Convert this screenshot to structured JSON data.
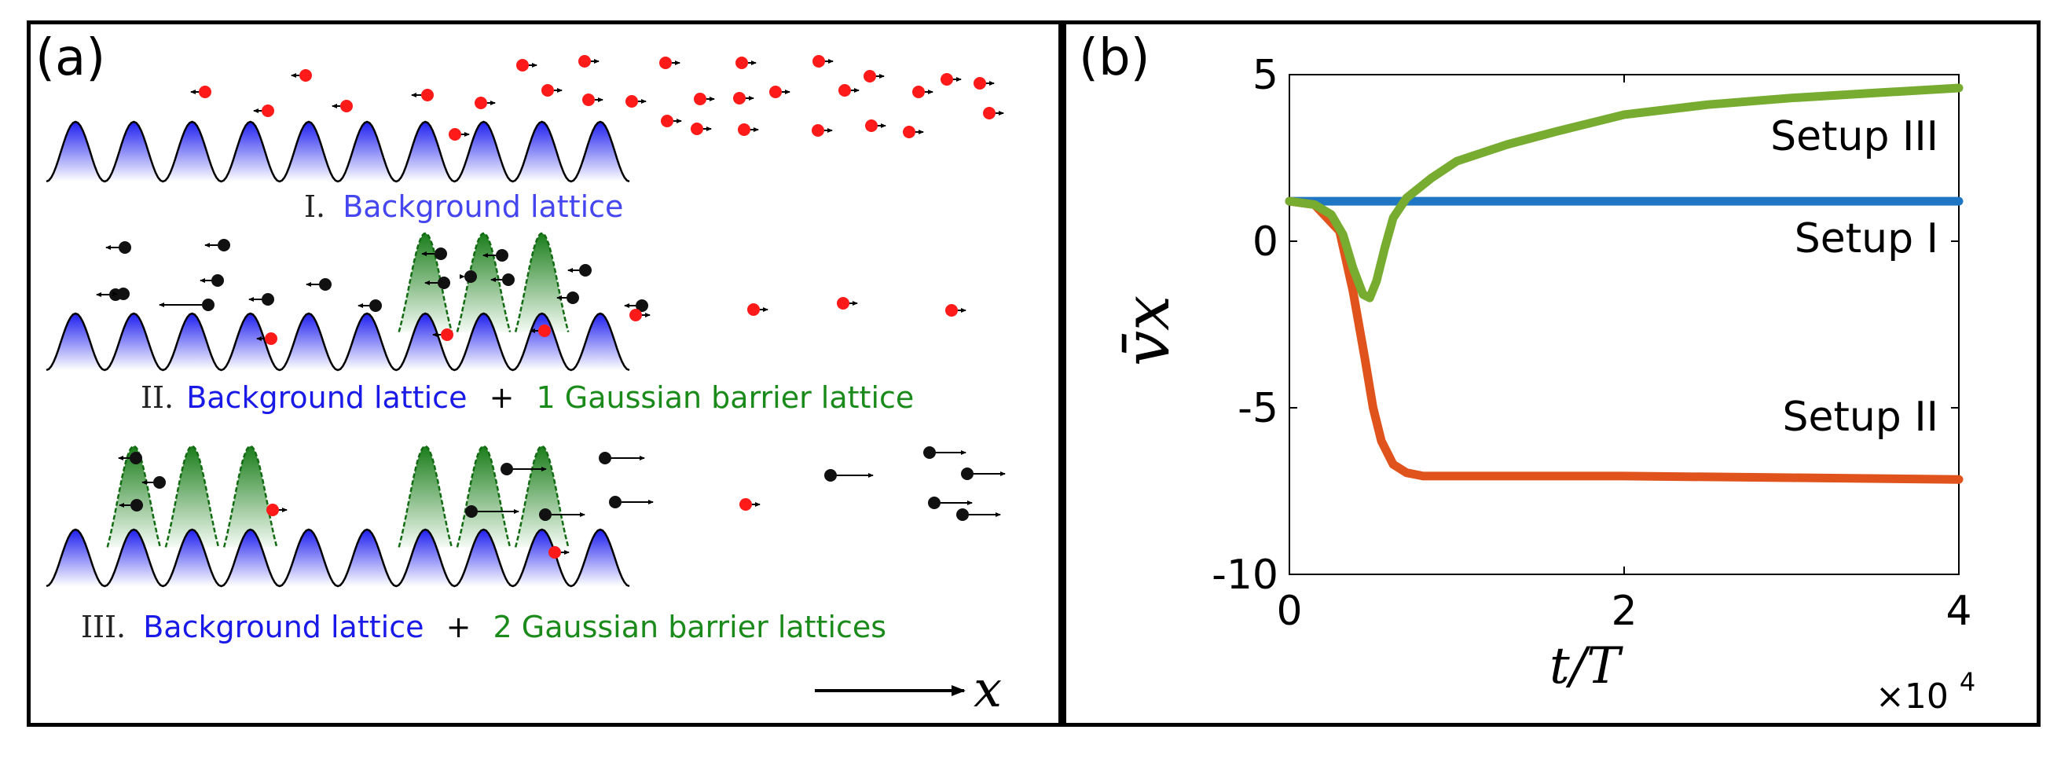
{
  "panel_a": {
    "letter": "(a)",
    "setups": [
      {
        "numeral": "I.",
        "part1": "Background lattice",
        "plus": "",
        "part2": ""
      },
      {
        "numeral": "II.",
        "part1": "Background lattice",
        "plus": "+",
        "part2": "1 Gaussian barrier lattice"
      },
      {
        "numeral": "III.",
        "part1": "Background lattice",
        "plus": "+",
        "part2": "2 Gaussian barrier lattices"
      }
    ],
    "axis_label": "x"
  },
  "panel_b": {
    "letter": "(b)"
  },
  "colors": {
    "background_lattice": "#3030e8",
    "barrier_lattice": "#1a8a1a",
    "setup_I": "#1f77c4",
    "setup_II": "#e0531c",
    "setup_III": "#77ac30"
  },
  "chart_data": {
    "type": "line",
    "xlabel": "t/T",
    "x_multiplier": "×10",
    "x_multiplier_exp": "4",
    "ylabel": "v̄x",
    "xlim": [
      0,
      4
    ],
    "ylim": [
      -10,
      5
    ],
    "xticks": [
      0,
      2,
      4
    ],
    "yticks": [
      5,
      0,
      -5,
      -10
    ],
    "grid": false,
    "series": [
      {
        "name": "Setup I",
        "color": "#1f77c4",
        "x": [
          0,
          0.5,
          1,
          1.5,
          2,
          2.5,
          3,
          3.5,
          4
        ],
        "y": [
          1.2,
          1.2,
          1.2,
          1.2,
          1.2,
          1.2,
          1.2,
          1.2,
          1.2
        ]
      },
      {
        "name": "Setup II",
        "color": "#e0531c",
        "x": [
          0,
          0.15,
          0.3,
          0.38,
          0.45,
          0.5,
          0.55,
          0.62,
          0.7,
          0.8,
          1.0,
          1.5,
          2,
          3,
          4
        ],
        "y": [
          1.2,
          1.1,
          0.3,
          -1.5,
          -3.5,
          -5.0,
          -6.0,
          -6.7,
          -6.95,
          -7.05,
          -7.05,
          -7.05,
          -7.05,
          -7.1,
          -7.15
        ]
      },
      {
        "name": "Setup III",
        "color": "#77ac30",
        "x": [
          0,
          0.15,
          0.25,
          0.32,
          0.38,
          0.44,
          0.48,
          0.52,
          0.57,
          0.62,
          0.7,
          0.85,
          1.0,
          1.3,
          1.6,
          2.0,
          2.5,
          3.0,
          3.5,
          4.0
        ],
        "y": [
          1.2,
          1.1,
          0.8,
          0.2,
          -0.8,
          -1.6,
          -1.7,
          -1.2,
          -0.2,
          0.7,
          1.3,
          1.9,
          2.4,
          2.9,
          3.3,
          3.8,
          4.1,
          4.3,
          4.45,
          4.6
        ]
      }
    ],
    "annotations": [
      "Setup III",
      "Setup I",
      "Setup II"
    ]
  }
}
